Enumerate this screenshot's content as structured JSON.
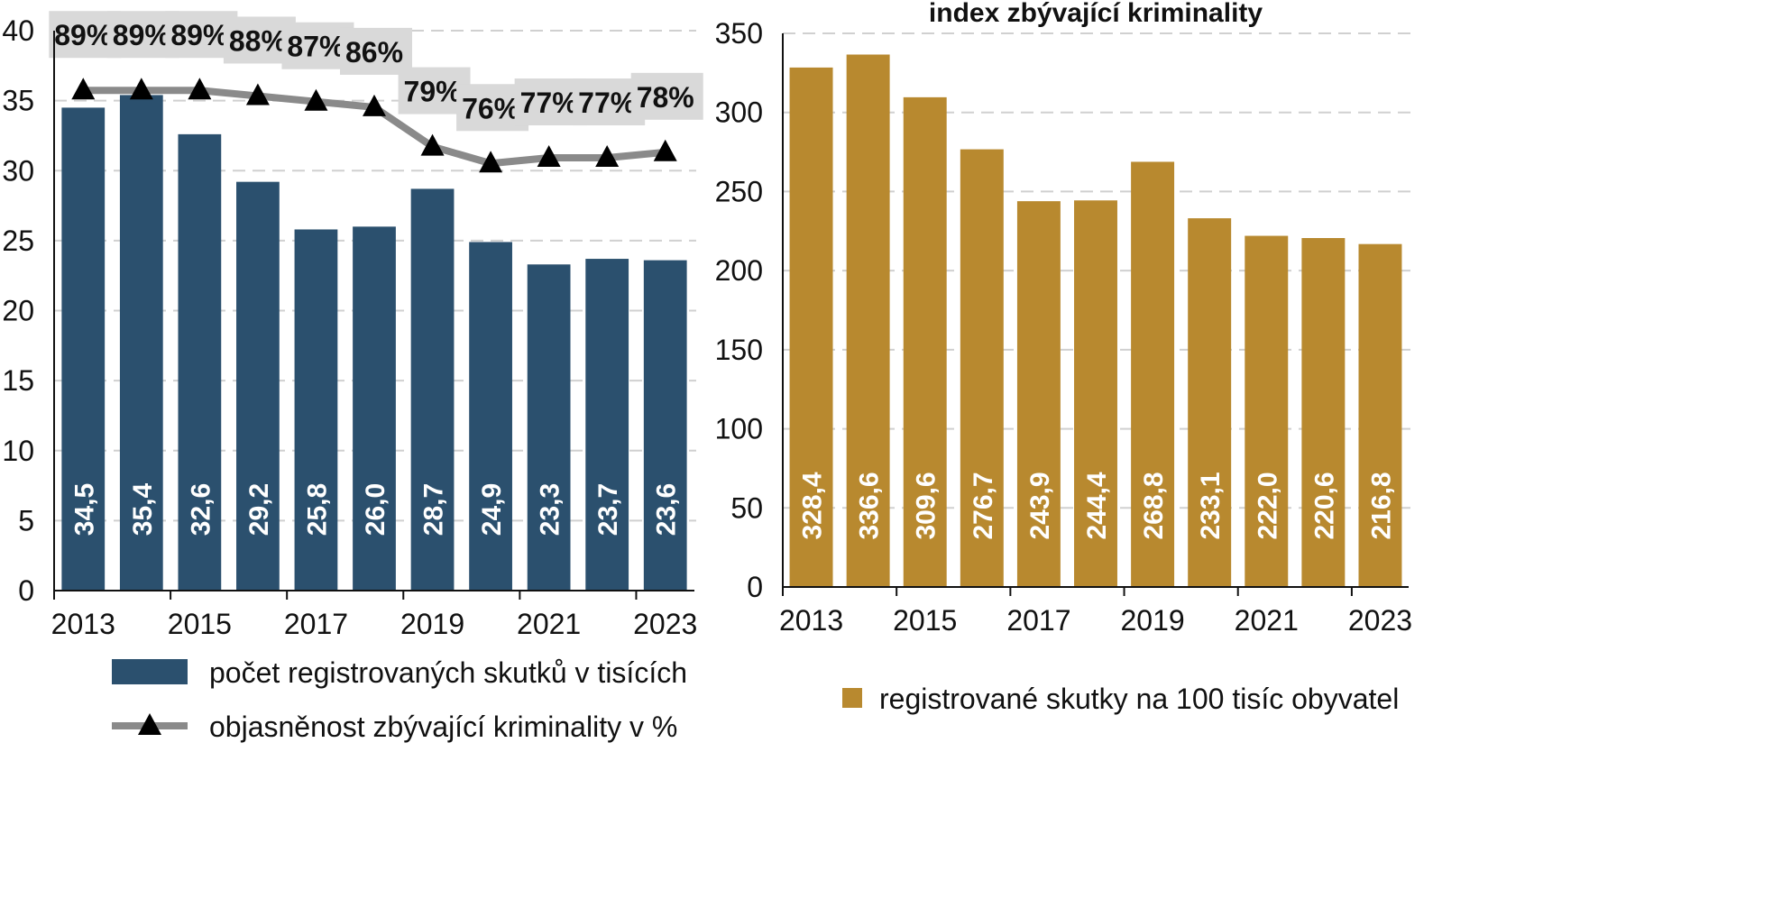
{
  "chart_data": [
    {
      "type": "bar",
      "title": "",
      "x": [
        2013,
        2014,
        2015,
        2016,
        2017,
        2018,
        2019,
        2020,
        2021,
        2022,
        2023
      ],
      "x_tick_labels": [
        "2013",
        "2015",
        "2017",
        "2019",
        "2021",
        "2023"
      ],
      "ylim": [
        0,
        40
      ],
      "y_ticks": [
        0,
        5,
        10,
        15,
        20,
        25,
        30,
        35,
        40
      ],
      "grid": true,
      "legend_position": "bottom",
      "series": [
        {
          "name": "počet registrovaných skutků v tisících",
          "type": "bar",
          "color": "#2b506e",
          "values": [
            34.5,
            35.4,
            32.6,
            29.2,
            25.8,
            26.0,
            28.7,
            24.9,
            23.3,
            23.7,
            23.6
          ],
          "labels": [
            "34,5",
            "35,4",
            "32,6",
            "29,2",
            "25,8",
            "26,0",
            "28,7",
            "24,9",
            "23,3",
            "23,7",
            "23,6"
          ]
        },
        {
          "name": "objasněnost zbývající kriminality v %",
          "type": "line",
          "color": "#8a8a8a",
          "marker": "triangle",
          "values": [
            89,
            89,
            89,
            88,
            87,
            86,
            79,
            76,
            77,
            77,
            78
          ],
          "labels": [
            "89%",
            "89%",
            "89%",
            "88%",
            "87%",
            "86%",
            "79%",
            "76%",
            "77%",
            "77%",
            "78%"
          ]
        }
      ]
    },
    {
      "type": "bar",
      "title": "index zbývající kriminality",
      "x": [
        2013,
        2014,
        2015,
        2016,
        2017,
        2018,
        2019,
        2020,
        2021,
        2022,
        2023
      ],
      "x_tick_labels": [
        "2013",
        "2015",
        "2017",
        "2019",
        "2021",
        "2023"
      ],
      "ylim": [
        0,
        350
      ],
      "y_ticks": [
        0,
        50,
        100,
        150,
        200,
        250,
        300,
        350
      ],
      "grid": true,
      "legend_position": "bottom",
      "series": [
        {
          "name": "registrované skutky na 100 tisíc obyvatel",
          "type": "bar",
          "color": "#b8892f",
          "values": [
            328.4,
            336.6,
            309.6,
            276.7,
            243.9,
            244.4,
            268.8,
            233.1,
            222.0,
            220.6,
            216.8
          ],
          "labels": [
            "328,4",
            "336,6",
            "309,6",
            "276,7",
            "243,9",
            "244,4",
            "268,8",
            "233,1",
            "222,0",
            "220,6",
            "216,8"
          ]
        }
      ]
    }
  ]
}
